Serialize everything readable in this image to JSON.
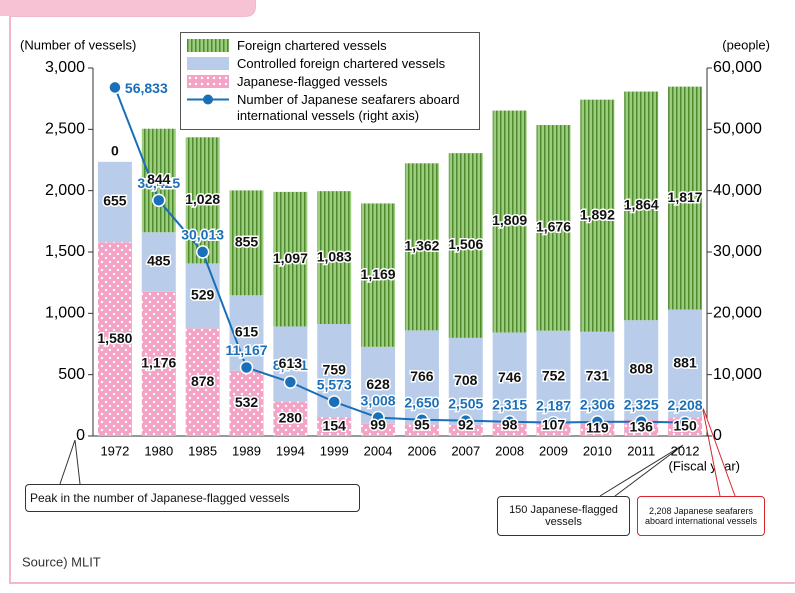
{
  "chart_data": {
    "type": "bar-line",
    "source": "Source) MLIT",
    "y_label": "(Number of vessels)",
    "y2_label": "(people)",
    "x_label": "(Fiscal year)",
    "categories": [
      "1972",
      "1980",
      "1985",
      "1989",
      "1994",
      "1999",
      "2004",
      "2006",
      "2007",
      "2008",
      "2009",
      "2010",
      "2011",
      "2012"
    ],
    "series": [
      {
        "name": "Japanese-flagged vessels",
        "color": "#f4a3c6",
        "values": [
          1580,
          1176,
          878,
          532,
          280,
          154,
          99,
          95,
          92,
          98,
          107,
          119,
          136,
          150
        ],
        "value_labels": [
          "1,580",
          "1,176",
          "878",
          "532",
          "280",
          "154",
          "99",
          "95",
          "92",
          "98",
          "107",
          "119",
          "136",
          "150"
        ]
      },
      {
        "name": "Controlled foreign chartered vessels",
        "color": "#b9cdea",
        "values": [
          655,
          485,
          529,
          615,
          613,
          759,
          628,
          766,
          708,
          746,
          752,
          731,
          808,
          881
        ]
      },
      {
        "name": "Foreign chartered vessels",
        "color": "#8cc26c",
        "values": [
          0,
          844,
          1028,
          855,
          1097,
          1083,
          1169,
          1362,
          1506,
          1809,
          1676,
          1892,
          1864,
          1817
        ],
        "value_labels": [
          "0",
          "844",
          "1,028",
          "855",
          "1,097",
          "1,083",
          "1,169",
          "1,362",
          "1,506",
          "1,809",
          "1,676",
          "1,892",
          "1,864",
          "1,817"
        ]
      },
      {
        "name": "Number of Japanese seafarers aboard international  vessels (right axis)",
        "color": "#1a6fb8",
        "axis": "y2",
        "values": [
          56833,
          38425,
          30013,
          11167,
          8781,
          5573,
          3008,
          2650,
          2505,
          2315,
          2187,
          2306,
          2325,
          2208
        ],
        "value_labels": [
          "56,833",
          "38,425",
          "30,013",
          "11,167",
          "8,781",
          "5,573",
          "3,008",
          "2,650",
          "2,505",
          "2,315",
          "2,187",
          "2,306",
          "2,325",
          "2,208"
        ]
      }
    ],
    "ylim": [
      0,
      3000
    ],
    "yticks": [
      0,
      500,
      {
        "value": 1000,
        "label": "1,000"
      },
      {
        "value": 1500,
        "label": "1,500"
      },
      {
        "value": 2000,
        "label": "2,000"
      },
      {
        "value": 2500,
        "label": "2,500"
      },
      {
        "value": 3000,
        "label": "3,000"
      }
    ],
    "y2lim": [
      0,
      60000
    ],
    "y2ticks": [
      0,
      {
        "value": 10000,
        "label": "10,000"
      },
      {
        "value": 20000,
        "label": "20,000"
      },
      {
        "value": 30000,
        "label": "30,000"
      },
      {
        "value": 40000,
        "label": "40,000"
      },
      {
        "value": 50000,
        "label": "50,000"
      },
      {
        "value": 60000,
        "label": "60,000"
      }
    ],
    "annotations": [
      "Peak in the number of Japanese-flagged vessels",
      "150 Japanese-flagged vessels",
      "2,208 Japanese seafarers aboard international vessels"
    ]
  }
}
